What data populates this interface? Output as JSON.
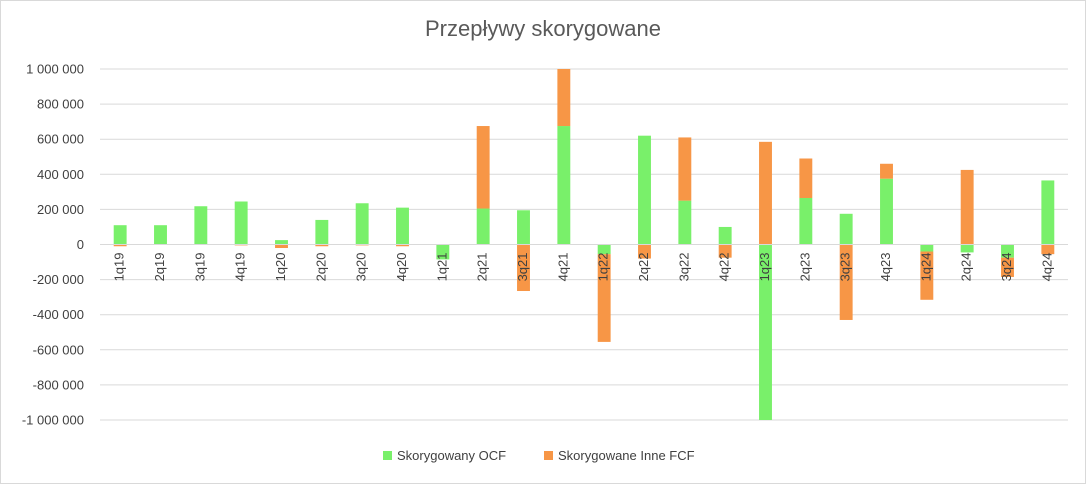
{
  "chart_data": {
    "type": "bar",
    "stacked": true,
    "title": "Przepływy skorygowane",
    "categories": [
      "1q19",
      "2q19",
      "3q19",
      "4q19",
      "1q20",
      "2q20",
      "3q20",
      "4q20",
      "1q21",
      "2q21",
      "3q21",
      "4q21",
      "1q22",
      "2q22",
      "3q22",
      "4q22",
      "1q23",
      "2q23",
      "3q23",
      "4q23",
      "1q24",
      "2q24",
      "3q24",
      "4q24"
    ],
    "series": [
      {
        "name": "Skorygowany OCF",
        "color": "#79f06a",
        "values": [
          110000,
          110000,
          218000,
          245000,
          25000,
          140000,
          235000,
          210000,
          -85000,
          205000,
          195000,
          675000,
          -55000,
          620000,
          250000,
          100000,
          -1000000,
          265000,
          175000,
          375000,
          -40000,
          -45000,
          -75000,
          365000
        ]
      },
      {
        "name": "Skorygowane Inne FCF",
        "color": "#f79646",
        "values": [
          -10000,
          0,
          0,
          -5000,
          -20000,
          -10000,
          -5000,
          -10000,
          0,
          470000,
          -265000,
          325000,
          -500000,
          -80000,
          360000,
          -75000,
          585000,
          225000,
          -430000,
          85000,
          -275000,
          425000,
          -110000,
          -55000
        ]
      }
    ],
    "ylim": [
      -1000000,
      1000000
    ],
    "yticks": [
      1000000,
      800000,
      600000,
      400000,
      200000,
      0,
      -200000,
      -400000,
      -600000,
      -800000,
      -1000000
    ],
    "ytick_labels": [
      "1 000 000",
      "800 000",
      "600 000",
      "400 000",
      "200 000",
      "0",
      "-200 000",
      "-400 000",
      "-600 000",
      "-800 000",
      "-1 000 000"
    ],
    "grid": true,
    "legend_position": "bottom"
  }
}
